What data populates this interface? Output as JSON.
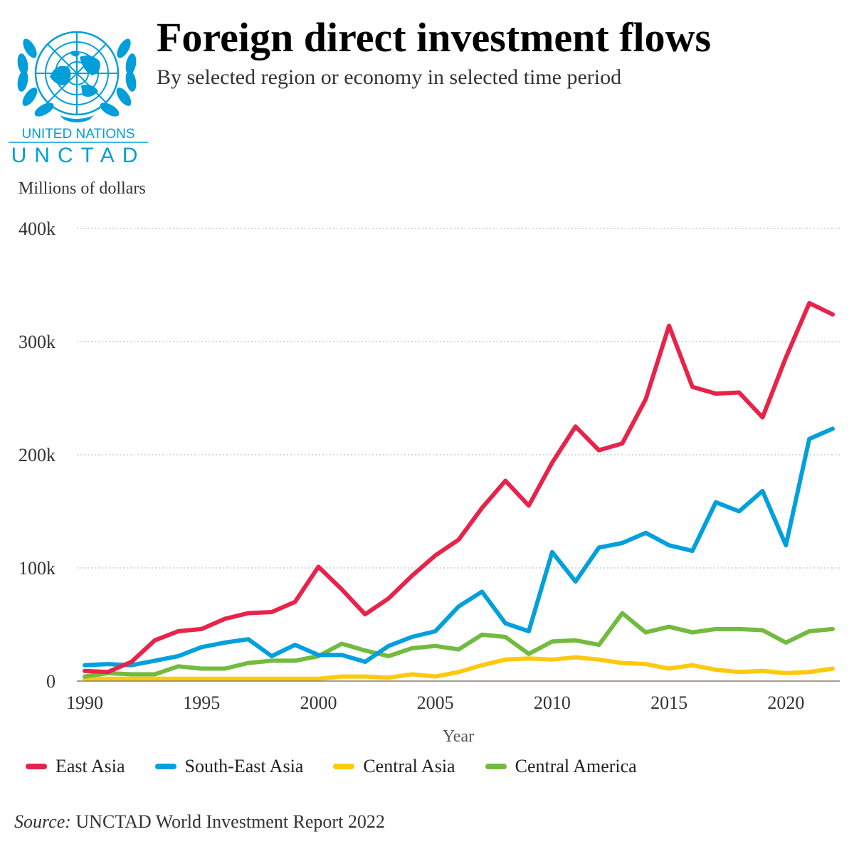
{
  "header": {
    "logo_line1": "UNITED NATIONS",
    "logo_line2": "UNCTAD",
    "title": "Foreign direct investment flows",
    "subtitle": "By selected region or economy in selected time period"
  },
  "footer": {
    "source_label": "Source:",
    "source_text": " UNCTAD World Investment Report 2022"
  },
  "colors": {
    "brand": "#009edb",
    "grid": "#cccccc",
    "axis": "#8a7f72"
  },
  "chart_data": {
    "type": "line",
    "ylabel_top": "Millions of dollars",
    "xlabel": "Year",
    "xlim": [
      1990,
      2022
    ],
    "ylim": [
      0,
      400000
    ],
    "x_ticks": [
      1990,
      1995,
      2000,
      2005,
      2010,
      2015,
      2020
    ],
    "y_ticks": [
      0,
      100000,
      200000,
      300000,
      400000
    ],
    "y_tick_labels": [
      "0",
      "100k",
      "200k",
      "300k",
      "400k"
    ],
    "grid": "horizontal dotted",
    "legend_position": "bottom",
    "x": [
      1990,
      1991,
      1992,
      1993,
      1994,
      1995,
      1996,
      1997,
      1998,
      1999,
      2000,
      2001,
      2002,
      2003,
      2004,
      2005,
      2006,
      2007,
      2008,
      2009,
      2010,
      2011,
      2012,
      2013,
      2014,
      2015,
      2016,
      2017,
      2018,
      2019,
      2020,
      2021,
      2022
    ],
    "series": [
      {
        "name": "East Asia",
        "color": "#e8234a",
        "values": [
          9000,
          8000,
          17000,
          36000,
          44000,
          46000,
          55000,
          60000,
          61000,
          70000,
          101000,
          81000,
          59000,
          73000,
          93000,
          111000,
          125000,
          153000,
          177000,
          155000,
          193000,
          225000,
          204000,
          210000,
          249000,
          314000,
          260000,
          254000,
          255000,
          233000,
          286000,
          334000,
          324000
        ]
      },
      {
        "name": "South-East Asia",
        "color": "#00a0dc",
        "values": [
          14000,
          15000,
          14000,
          18000,
          22000,
          30000,
          34000,
          37000,
          22000,
          32000,
          23000,
          23000,
          17000,
          31000,
          39000,
          44000,
          66000,
          79000,
          51000,
          44000,
          114000,
          88000,
          118000,
          122000,
          131000,
          120000,
          115000,
          158000,
          150000,
          168000,
          120000,
          214000,
          223000
        ]
      },
      {
        "name": "Central Asia",
        "color": "#ffc90e",
        "values": [
          2000,
          2000,
          2000,
          2000,
          2000,
          2000,
          2000,
          2000,
          2000,
          2000,
          2000,
          4000,
          4000,
          3000,
          6000,
          4000,
          8000,
          14000,
          19000,
          20000,
          19000,
          21000,
          19000,
          16000,
          15000,
          11000,
          14000,
          10000,
          8000,
          9000,
          7000,
          8000,
          11000
        ]
      },
      {
        "name": "Central America",
        "color": "#72bb3f",
        "values": [
          4000,
          7000,
          6000,
          6000,
          13000,
          11000,
          11000,
          16000,
          18000,
          18000,
          22000,
          33000,
          27000,
          22000,
          29000,
          31000,
          28000,
          41000,
          39000,
          24000,
          35000,
          36000,
          32000,
          60000,
          43000,
          48000,
          43000,
          46000,
          46000,
          45000,
          34000,
          44000,
          46000
        ]
      }
    ]
  }
}
